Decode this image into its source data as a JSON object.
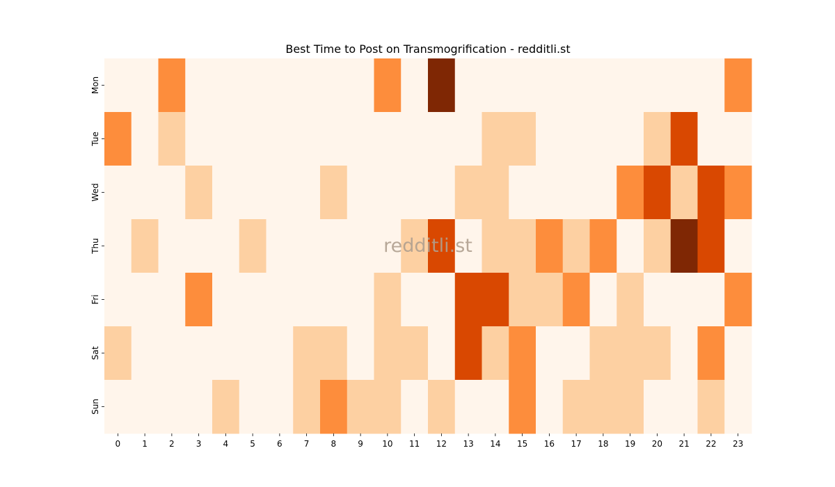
{
  "chart_data": {
    "type": "heatmap",
    "title": "Best Time to Post on Transmogrification - redditli.st",
    "watermark": "redditli.st",
    "xlabel": "",
    "ylabel": "",
    "x_categories": [
      "0",
      "1",
      "2",
      "3",
      "4",
      "5",
      "6",
      "7",
      "8",
      "9",
      "10",
      "11",
      "12",
      "13",
      "14",
      "15",
      "16",
      "17",
      "18",
      "19",
      "20",
      "21",
      "22",
      "23"
    ],
    "y_categories": [
      "Mon",
      "Tue",
      "Wed",
      "Thu",
      "Fri",
      "Sat",
      "Sun"
    ],
    "values": [
      [
        0,
        0,
        2,
        0,
        0,
        0,
        0,
        0,
        0,
        0,
        2,
        0,
        4,
        0,
        0,
        0,
        0,
        0,
        0,
        0,
        0,
        0,
        0,
        2
      ],
      [
        2,
        0,
        1,
        0,
        0,
        0,
        0,
        0,
        0,
        0,
        0,
        0,
        0,
        0,
        1,
        1,
        0,
        0,
        0,
        0,
        1,
        3,
        0,
        0
      ],
      [
        0,
        0,
        0,
        1,
        0,
        0,
        0,
        0,
        1,
        0,
        0,
        0,
        0,
        1,
        1,
        0,
        0,
        0,
        0,
        2,
        3,
        1,
        3,
        2
      ],
      [
        0,
        1,
        0,
        0,
        0,
        1,
        0,
        0,
        0,
        0,
        0,
        1,
        3,
        0,
        1,
        1,
        2,
        1,
        2,
        0,
        1,
        4,
        3,
        0
      ],
      [
        0,
        0,
        0,
        2,
        0,
        0,
        0,
        0,
        0,
        0,
        1,
        0,
        0,
        3,
        3,
        1,
        1,
        2,
        0,
        1,
        0,
        0,
        0,
        2
      ],
      [
        1,
        0,
        0,
        0,
        0,
        0,
        0,
        1,
        1,
        0,
        1,
        1,
        0,
        3,
        1,
        2,
        0,
        0,
        1,
        1,
        1,
        0,
        2,
        0
      ],
      [
        0,
        0,
        0,
        0,
        1,
        0,
        0,
        1,
        2,
        1,
        1,
        0,
        1,
        0,
        0,
        2,
        0,
        1,
        1,
        1,
        0,
        0,
        1,
        0
      ]
    ],
    "value_range": [
      0,
      4
    ],
    "colormap": [
      "#fff5eb",
      "#fdd0a2",
      "#fd8d3c",
      "#d94801",
      "#7f2704"
    ],
    "legend": "none",
    "grid": false
  }
}
